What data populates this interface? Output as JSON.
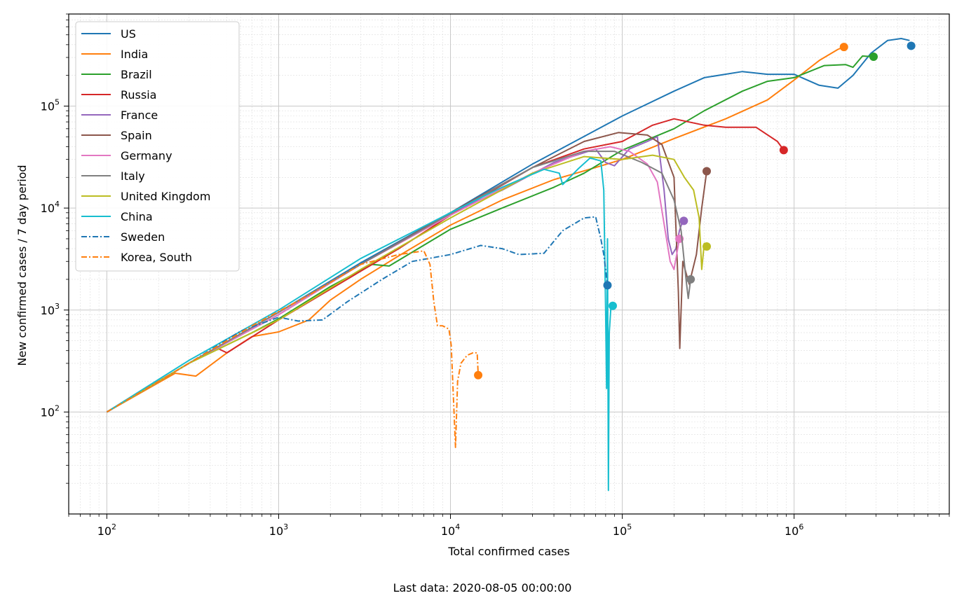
{
  "chart_data": {
    "type": "line",
    "xlabel": "Total confirmed cases",
    "ylabel": "New confirmed cases / 7 day period",
    "footer": "Last data: 2020-08-05 00:00:00",
    "xscale": "log",
    "yscale": "log",
    "xlim": [
      60,
      8000000
    ],
    "ylim": [
      10,
      800000
    ],
    "grid": "major and minor",
    "legend_position": "top-left",
    "x_ticks": [
      {
        "value": 100,
        "base": "10",
        "exp": "2"
      },
      {
        "value": 1000,
        "base": "10",
        "exp": "3"
      },
      {
        "value": 10000,
        "base": "10",
        "exp": "4"
      },
      {
        "value": 100000,
        "base": "10",
        "exp": "5"
      },
      {
        "value": 1000000,
        "base": "10",
        "exp": "6"
      }
    ],
    "y_ticks": [
      {
        "value": 100,
        "base": "10",
        "exp": "2"
      },
      {
        "value": 1000,
        "base": "10",
        "exp": "3"
      },
      {
        "value": 10000,
        "base": "10",
        "exp": "4"
      },
      {
        "value": 100000,
        "base": "10",
        "exp": "5"
      }
    ],
    "series": [
      {
        "name": "US",
        "color": "#1f77b4",
        "dash": "solid",
        "points": [
          [
            100,
            100
          ],
          [
            300,
            300
          ],
          [
            1000,
            950
          ],
          [
            3000,
            2900
          ],
          [
            10000,
            9000
          ],
          [
            30000,
            27000
          ],
          [
            100000,
            80000
          ],
          [
            200000,
            140000
          ],
          [
            300000,
            190000
          ],
          [
            500000,
            218000
          ],
          [
            700000,
            205000
          ],
          [
            1000000,
            205000
          ],
          [
            1400000,
            160000
          ],
          [
            1800000,
            150000
          ],
          [
            2200000,
            200000
          ],
          [
            2800000,
            330000
          ],
          [
            3500000,
            440000
          ],
          [
            4200000,
            460000
          ],
          [
            4700000,
            440000
          ]
        ],
        "end": [
          4800000,
          390000
        ]
      },
      {
        "name": "India",
        "color": "#ff7f0e",
        "dash": "solid",
        "points": [
          [
            100,
            100
          ],
          [
            250,
            240
          ],
          [
            330,
            225
          ],
          [
            500,
            380
          ],
          [
            700,
            550
          ],
          [
            1000,
            610
          ],
          [
            1500,
            800
          ],
          [
            2000,
            1250
          ],
          [
            3000,
            2000
          ],
          [
            5000,
            3400
          ],
          [
            10000,
            6800
          ],
          [
            20000,
            12000
          ],
          [
            40000,
            19000
          ],
          [
            70000,
            25000
          ],
          [
            100000,
            30000
          ],
          [
            200000,
            48000
          ],
          [
            400000,
            75000
          ],
          [
            700000,
            115000
          ],
          [
            1000000,
            180000
          ],
          [
            1400000,
            280000
          ],
          [
            1800000,
            360000
          ],
          [
            1950000,
            380000
          ]
        ],
        "end": [
          1950000,
          380000
        ]
      },
      {
        "name": "Brazil",
        "color": "#2ca02c",
        "dash": "solid",
        "points": [
          [
            100,
            100
          ],
          [
            300,
            300
          ],
          [
            700,
            600
          ],
          [
            1000,
            820
          ],
          [
            2000,
            1700
          ],
          [
            3500,
            2800
          ],
          [
            4400,
            2700
          ],
          [
            6000,
            3700
          ],
          [
            10000,
            6200
          ],
          [
            20000,
            10000
          ],
          [
            40000,
            16000
          ],
          [
            60000,
            22000
          ],
          [
            100000,
            37000
          ],
          [
            200000,
            60000
          ],
          [
            300000,
            90000
          ],
          [
            500000,
            140000
          ],
          [
            700000,
            175000
          ],
          [
            1000000,
            190000
          ],
          [
            1500000,
            250000
          ],
          [
            2000000,
            255000
          ],
          [
            2200000,
            240000
          ],
          [
            2500000,
            310000
          ],
          [
            2900000,
            305000
          ]
        ],
        "end": [
          2900000,
          305000
        ]
      },
      {
        "name": "Russia",
        "color": "#d62728",
        "dash": "solid",
        "points": [
          [
            430,
            430
          ],
          [
            500,
            380
          ],
          [
            1000,
            800
          ],
          [
            2000,
            1600
          ],
          [
            5000,
            4000
          ],
          [
            10000,
            8500
          ],
          [
            30000,
            25000
          ],
          [
            60000,
            38000
          ],
          [
            100000,
            45000
          ],
          [
            150000,
            65000
          ],
          [
            200000,
            75000
          ],
          [
            300000,
            65000
          ],
          [
            400000,
            62000
          ],
          [
            600000,
            62000
          ],
          [
            800000,
            45000
          ],
          [
            870000,
            37000
          ]
        ],
        "end": [
          870000,
          37000
        ]
      },
      {
        "name": "France",
        "color": "#9467bd",
        "dash": "solid",
        "points": [
          [
            100,
            100
          ],
          [
            300,
            300
          ],
          [
            1000,
            950
          ],
          [
            3000,
            2800
          ],
          [
            10000,
            9000
          ],
          [
            20000,
            15000
          ],
          [
            40000,
            28000
          ],
          [
            70000,
            38000
          ],
          [
            80000,
            28000
          ],
          [
            90000,
            26000
          ],
          [
            110000,
            38000
          ],
          [
            140000,
            45000
          ],
          [
            160000,
            50000
          ],
          [
            175000,
            15000
          ],
          [
            185000,
            5000
          ],
          [
            195000,
            3500
          ],
          [
            205000,
            4000
          ],
          [
            215000,
            6000
          ],
          [
            225000,
            7500
          ]
        ],
        "end": [
          228000,
          7500
        ]
      },
      {
        "name": "Spain",
        "color": "#8c564b",
        "dash": "solid",
        "points": [
          [
            100,
            100
          ],
          [
            300,
            300
          ],
          [
            1000,
            900
          ],
          [
            3000,
            2800
          ],
          [
            10000,
            9000
          ],
          [
            30000,
            25000
          ],
          [
            60000,
            45000
          ],
          [
            95000,
            55000
          ],
          [
            140000,
            52000
          ],
          [
            170000,
            42000
          ],
          [
            200000,
            20000
          ],
          [
            212000,
            1500
          ],
          [
            216000,
            420
          ],
          [
            225000,
            3000
          ],
          [
            245000,
            1800
          ],
          [
            270000,
            3500
          ],
          [
            290000,
            10000
          ],
          [
            310000,
            23000
          ]
        ],
        "end": [
          310000,
          23000
        ]
      },
      {
        "name": "Germany",
        "color": "#e377c2",
        "dash": "solid",
        "points": [
          [
            100,
            100
          ],
          [
            300,
            300
          ],
          [
            1000,
            900
          ],
          [
            3000,
            2800
          ],
          [
            10000,
            8500
          ],
          [
            30000,
            22000
          ],
          [
            60000,
            36000
          ],
          [
            85000,
            40000
          ],
          [
            110000,
            36000
          ],
          [
            140000,
            27000
          ],
          [
            160000,
            18000
          ],
          [
            175000,
            7000
          ],
          [
            190000,
            3000
          ],
          [
            200000,
            2500
          ],
          [
            215000,
            5000
          ]
        ],
        "end": [
          215000,
          5000
        ]
      },
      {
        "name": "Italy",
        "color": "#7f7f7f",
        "dash": "solid",
        "points": [
          [
            100,
            100
          ],
          [
            300,
            300
          ],
          [
            1000,
            950
          ],
          [
            3000,
            2800
          ],
          [
            10000,
            8800
          ],
          [
            30000,
            25000
          ],
          [
            60000,
            36000
          ],
          [
            90000,
            36000
          ],
          [
            130000,
            28000
          ],
          [
            170000,
            22000
          ],
          [
            200000,
            12000
          ],
          [
            220000,
            6000
          ],
          [
            235000,
            2000
          ],
          [
            242000,
            1300
          ],
          [
            250000,
            2000
          ]
        ],
        "end": [
          250000,
          2000
        ]
      },
      {
        "name": "United Kingdom",
        "color": "#bcbd22",
        "dash": "solid",
        "points": [
          [
            100,
            100
          ],
          [
            300,
            300
          ],
          [
            1000,
            800
          ],
          [
            3000,
            2500
          ],
          [
            10000,
            8000
          ],
          [
            30000,
            22000
          ],
          [
            60000,
            32000
          ],
          [
            100000,
            30000
          ],
          [
            150000,
            33000
          ],
          [
            200000,
            30000
          ],
          [
            230000,
            20000
          ],
          [
            260000,
            15000
          ],
          [
            280000,
            8000
          ],
          [
            290000,
            2500
          ],
          [
            300000,
            4500
          ],
          [
            310000,
            4200
          ]
        ],
        "end": [
          310000,
          4200
        ]
      },
      {
        "name": "China",
        "color": "#17becf",
        "dash": "solid",
        "points": [
          [
            100,
            100
          ],
          [
            300,
            320
          ],
          [
            1000,
            1000
          ],
          [
            3000,
            3200
          ],
          [
            6000,
            5800
          ],
          [
            10000,
            9000
          ],
          [
            20000,
            16000
          ],
          [
            35000,
            24000
          ],
          [
            43000,
            22000
          ],
          [
            45000,
            17000
          ],
          [
            55000,
            24000
          ],
          [
            65000,
            31000
          ],
          [
            75000,
            29000
          ],
          [
            78000,
            15000
          ],
          [
            80000,
            1000
          ],
          [
            81000,
            170
          ],
          [
            82000,
            5000
          ],
          [
            83000,
            17
          ],
          [
            84000,
            600
          ],
          [
            86000,
            1100
          ],
          [
            88000,
            1100
          ]
        ],
        "end": [
          88000,
          1100
        ]
      },
      {
        "name": "Sweden",
        "color": "#1f77b4",
        "dash": "dashdot",
        "points": [
          [
            100,
            100
          ],
          [
            300,
            300
          ],
          [
            600,
            620
          ],
          [
            1000,
            850
          ],
          [
            1300,
            780
          ],
          [
            1800,
            800
          ],
          [
            2500,
            1200
          ],
          [
            4000,
            2000
          ],
          [
            6000,
            3000
          ],
          [
            10000,
            3500
          ],
          [
            15000,
            4300
          ],
          [
            20000,
            4000
          ],
          [
            25000,
            3500
          ],
          [
            35000,
            3600
          ],
          [
            45000,
            6000
          ],
          [
            60000,
            8000
          ],
          [
            70000,
            8200
          ],
          [
            75000,
            5000
          ],
          [
            78000,
            3500
          ],
          [
            80000,
            2500
          ],
          [
            82000,
            1750
          ]
        ],
        "end": [
          82000,
          1750
        ]
      },
      {
        "name": "Korea, South",
        "color": "#ff7f0e",
        "dash": "dashdot",
        "points": [
          [
            100,
            100
          ],
          [
            300,
            300
          ],
          [
            700,
            700
          ],
          [
            1500,
            1400
          ],
          [
            3000,
            2800
          ],
          [
            5000,
            3500
          ],
          [
            7000,
            3800
          ],
          [
            7600,
            2800
          ],
          [
            8000,
            1200
          ],
          [
            8400,
            700
          ],
          [
            9000,
            700
          ],
          [
            9800,
            650
          ],
          [
            10100,
            450
          ],
          [
            10400,
            140
          ],
          [
            10700,
            45
          ],
          [
            11000,
            200
          ],
          [
            11500,
            300
          ],
          [
            12500,
            360
          ],
          [
            13500,
            380
          ],
          [
            14300,
            380
          ],
          [
            14500,
            230
          ]
        ],
        "end": [
          14500,
          230
        ]
      }
    ]
  }
}
